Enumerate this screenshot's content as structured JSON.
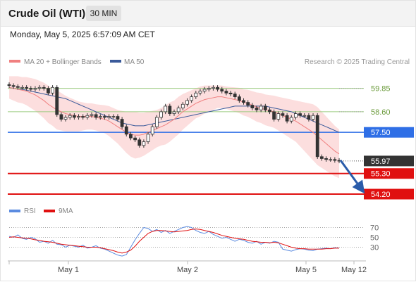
{
  "header": {
    "title": "Crude Oil (WTI)",
    "timeframe": "30 MIN"
  },
  "datetime": "Monday, May 5, 2025 6:57:09 AM CET",
  "legend": {
    "ma20": "MA 20 + Bollinger Bands",
    "ma50": "MA 50",
    "credit": "Research © 2025 Trading Central"
  },
  "rsi_legend": {
    "rsi": "RSI",
    "ma": "9MA"
  },
  "colors": {
    "ma20": "#f08080",
    "ma50": "#3a5a9a",
    "bands": "#fbd6d6",
    "green_level": "#9ccc80",
    "blue_level": "#2f6fe6",
    "red_level": "#e01010",
    "dark_tag": "#333333",
    "arrow": "#2a5caa",
    "rsi_line": "#5b8be0",
    "rsi_ma": "#e01010"
  },
  "chart_data": [
    {
      "type": "candlestick",
      "x_ticks": [
        "May 1",
        "May 2",
        "May 5",
        "May 12"
      ],
      "price_range": [
        53.9,
        60.4
      ],
      "levels": [
        {
          "label": "59.85",
          "value": 59.85,
          "kind": "green"
        },
        {
          "label": "58.60",
          "value": 58.6,
          "kind": "green"
        },
        {
          "label": "57.50",
          "value": 57.5,
          "kind": "blue"
        },
        {
          "label": "55.97",
          "value": 55.97,
          "kind": "current"
        },
        {
          "label": "55.30",
          "value": 55.3,
          "kind": "red"
        },
        {
          "label": "54.20",
          "value": 54.2,
          "kind": "red"
        }
      ],
      "close": [
        60.0,
        59.95,
        59.9,
        59.9,
        59.85,
        59.8,
        59.85,
        59.9,
        59.85,
        59.6,
        59.9,
        58.45,
        58.2,
        58.3,
        58.4,
        58.3,
        58.35,
        58.3,
        58.4,
        58.45,
        58.3,
        58.35,
        58.3,
        58.35,
        58.35,
        58.2,
        57.8,
        57.4,
        57.2,
        57.1,
        56.8,
        57.0,
        57.4,
        57.8,
        58.3,
        58.6,
        58.9,
        58.5,
        58.6,
        58.8,
        59.0,
        59.2,
        59.4,
        59.6,
        59.7,
        59.8,
        59.85,
        59.9,
        59.8,
        59.7,
        59.6,
        59.55,
        59.4,
        59.2,
        59.1,
        58.95,
        58.8,
        58.7,
        58.9,
        58.7,
        58.6,
        58.2,
        58.5,
        58.4,
        58.1,
        58.3,
        58.5,
        58.4,
        58.4,
        58.2,
        58.4,
        56.2,
        56.1,
        56.05,
        56.05,
        56.0,
        55.97
      ],
      "ma20": [
        59.9,
        59.85,
        59.8,
        59.75,
        59.7,
        59.6,
        59.5,
        59.35,
        59.2,
        59.0,
        58.85,
        58.7,
        58.6,
        58.5,
        58.45,
        58.4,
        58.35,
        58.35,
        58.35,
        58.35,
        58.3,
        58.25,
        58.2,
        58.1,
        57.95,
        57.8,
        57.65,
        57.5,
        57.4,
        57.35,
        57.35,
        57.4,
        57.5,
        57.6,
        57.7,
        57.8,
        57.9,
        58.05,
        58.2,
        58.4,
        58.6,
        58.75,
        58.9,
        59.05,
        59.15,
        59.25,
        59.3,
        59.35,
        59.4,
        59.4,
        59.35,
        59.3,
        59.25,
        59.2,
        59.1,
        59.05,
        58.95,
        58.85,
        58.8,
        58.7,
        58.65,
        58.6,
        58.5,
        58.4,
        58.3,
        58.2,
        58.1,
        57.95,
        57.8,
        57.65,
        57.5,
        57.3,
        57.1,
        56.9,
        56.7,
        56.5,
        56.35
      ],
      "ma50": [
        59.9,
        59.85,
        59.8,
        59.8,
        59.75,
        59.7,
        59.65,
        59.6,
        59.55,
        59.5,
        59.45,
        59.4,
        59.35,
        59.3,
        59.2,
        59.1,
        59.0,
        58.9,
        58.8,
        58.7,
        58.6,
        58.5,
        58.4,
        58.3,
        58.2,
        58.1,
        58.0,
        57.95,
        57.9,
        57.85,
        57.85,
        57.85,
        57.9,
        57.95,
        58.0,
        58.05,
        58.1,
        58.15,
        58.2,
        58.25,
        58.3,
        58.35,
        58.4,
        58.45,
        58.5,
        58.55,
        58.6,
        58.65,
        58.7,
        58.75,
        58.8,
        58.85,
        58.9,
        58.9,
        58.9,
        58.9,
        58.9,
        58.9,
        58.9,
        58.9,
        58.85,
        58.8,
        58.75,
        58.7,
        58.65,
        58.6,
        58.5,
        58.4,
        58.3,
        58.2,
        58.1,
        58.0,
        57.9,
        57.8,
        57.7,
        57.6,
        57.5
      ],
      "bands_width": [
        0.6,
        0.65,
        0.7,
        0.7,
        0.75,
        0.8,
        0.85,
        0.9,
        0.95,
        1.0,
        1.0,
        1.05,
        1.0,
        0.95,
        0.9,
        0.85,
        0.8,
        0.75,
        0.7,
        0.7,
        0.7,
        0.72,
        0.75,
        0.8,
        0.85,
        0.9,
        1.0,
        1.1,
        1.2,
        1.25,
        1.2,
        1.15,
        1.1,
        1.05,
        1.0,
        1.0,
        1.05,
        1.05,
        1.0,
        1.0,
        0.95,
        0.9,
        0.85,
        0.8,
        0.8,
        0.75,
        0.7,
        0.65,
        0.6,
        0.6,
        0.6,
        0.62,
        0.65,
        0.68,
        0.7,
        0.72,
        0.75,
        0.78,
        0.8,
        0.82,
        0.84,
        0.86,
        0.9,
        0.95,
        1.0,
        1.05,
        1.1,
        1.2,
        1.3,
        1.4,
        1.5,
        1.55,
        1.5,
        1.45,
        1.4,
        1.35,
        1.3
      ]
    },
    {
      "type": "line",
      "name": "RSI",
      "y_ticks": [
        70,
        50,
        30
      ],
      "y_range": [
        5,
        85
      ],
      "rsi": [
        52,
        50,
        55,
        48,
        46,
        50,
        47,
        40,
        42,
        38,
        44,
        36,
        35,
        30,
        34,
        32,
        30,
        34,
        28,
        30,
        33,
        28,
        26,
        22,
        18,
        14,
        12,
        15,
        30,
        45,
        58,
        70,
        68,
        62,
        66,
        60,
        64,
        58,
        62,
        66,
        70,
        72,
        70,
        64,
        60,
        58,
        62,
        56,
        52,
        48,
        50,
        46,
        42,
        46,
        44,
        40,
        38,
        42,
        36,
        40,
        38,
        42,
        40,
        26,
        24,
        22,
        25,
        27,
        26,
        24,
        23,
        26,
        27,
        28,
        27,
        29,
        28
      ],
      "ma": [
        50,
        51,
        50,
        49,
        48,
        47,
        45,
        44,
        42,
        41,
        40,
        38,
        36,
        35,
        34,
        33,
        32,
        31,
        30,
        30,
        30,
        29,
        27,
        25,
        23,
        20,
        18,
        20,
        24,
        32,
        42,
        50,
        58,
        62,
        64,
        64,
        63,
        62,
        61,
        62,
        63,
        64,
        66,
        67,
        66,
        64,
        62,
        60,
        57,
        54,
        52,
        50,
        48,
        47,
        46,
        44,
        42,
        41,
        40,
        40,
        39,
        40,
        39,
        36,
        33,
        30,
        28,
        27,
        27,
        26,
        26,
        26,
        26,
        27,
        27,
        28,
        28
      ]
    }
  ]
}
